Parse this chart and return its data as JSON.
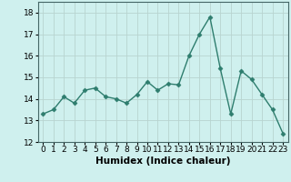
{
  "x": [
    0,
    1,
    2,
    3,
    4,
    5,
    6,
    7,
    8,
    9,
    10,
    11,
    12,
    13,
    14,
    15,
    16,
    17,
    18,
    19,
    20,
    21,
    22,
    23
  ],
  "y": [
    13.3,
    13.5,
    14.1,
    13.8,
    14.4,
    14.5,
    14.1,
    14.0,
    13.8,
    14.2,
    14.8,
    14.4,
    14.7,
    14.65,
    16.0,
    17.0,
    17.8,
    15.4,
    13.3,
    15.3,
    14.9,
    14.2,
    13.5,
    12.4
  ],
  "line_color": "#2e7d6e",
  "marker": "D",
  "marker_size": 2.5,
  "line_width": 1.0,
  "bg_color": "#cff0ee",
  "grid_color": "#b8d4d0",
  "xlabel": "Humidex (Indice chaleur)",
  "xlim": [
    -0.5,
    23.5
  ],
  "ylim": [
    12,
    18.5
  ],
  "yticks": [
    12,
    13,
    14,
    15,
    16,
    17,
    18
  ],
  "xticks": [
    0,
    1,
    2,
    3,
    4,
    5,
    6,
    7,
    8,
    9,
    10,
    11,
    12,
    13,
    14,
    15,
    16,
    17,
    18,
    19,
    20,
    21,
    22,
    23
  ],
  "tick_fontsize": 6.5,
  "xlabel_fontsize": 7.5
}
